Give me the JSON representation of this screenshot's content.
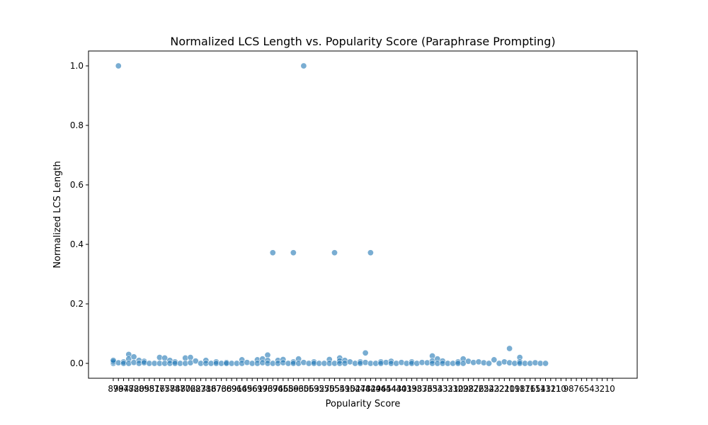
{
  "chart_data": {
    "type": "scatter",
    "title": "Normalized LCS Length vs. Popularity Score (Paraphrase Prompting)",
    "xlabel": "Popularity Score",
    "ylabel": "Normalized LCS Length",
    "ylim": [
      -0.05,
      1.05
    ],
    "grid": false,
    "point_color": "#1f77b4",
    "point_opacity": 0.6,
    "y_ticks": [
      {
        "value": 0.0,
        "label": "0.0"
      },
      {
        "value": 0.2,
        "label": "0.2"
      },
      {
        "value": 0.4,
        "label": "0.4"
      },
      {
        "value": 0.6,
        "label": "0.6"
      },
      {
        "value": 0.8,
        "label": "0.8"
      },
      {
        "value": 1.0,
        "label": "1.0"
      }
    ],
    "categories": [
      "89",
      "79",
      "84",
      "77",
      "82",
      "80",
      "85",
      "95",
      "81",
      "76",
      "75",
      "78",
      "74",
      "88",
      "70",
      "72",
      "62",
      "83",
      "71",
      "86",
      "87",
      "73",
      "68",
      "69",
      "91",
      "64",
      "65",
      "96",
      "61",
      "97",
      "93",
      "67",
      "94",
      "66",
      "58",
      "59",
      "63",
      "60",
      "56",
      "53",
      "92",
      "57",
      "50",
      "55",
      "54",
      "51",
      "90",
      "52",
      "47",
      "48",
      "42",
      "49",
      "46",
      "45",
      "44",
      "43",
      "40",
      "41",
      "39",
      "38",
      "37",
      "36",
      "35",
      "34",
      "33",
      "32",
      "31",
      "30",
      "29",
      "28",
      "27",
      "26",
      "25",
      "24",
      "23",
      "22",
      "21",
      "20",
      "19",
      "18",
      "17",
      "16",
      "15",
      "14",
      "13",
      "12",
      "11",
      "10",
      "9",
      "8",
      "7",
      "6",
      "5",
      "4",
      "3",
      "2",
      "1",
      "0"
    ],
    "tick_labels": [
      "89",
      "79",
      "84",
      "77",
      "82",
      "80",
      "85",
      "95",
      "81",
      "76",
      "75",
      "78",
      "74",
      "88",
      "70",
      "72",
      "62",
      "83",
      "71",
      "86",
      "87",
      "73",
      "68",
      "69",
      "91",
      "64",
      "65",
      "96",
      "61",
      "97",
      "93",
      "67",
      "94",
      "66",
      "58",
      "59",
      "63",
      "60",
      "56",
      "53",
      "92",
      "57",
      "50",
      "55",
      "54",
      "51",
      "90",
      "52",
      "47",
      "48",
      "42",
      "49",
      "46",
      "45",
      "44",
      "43",
      "40",
      "41",
      "39",
      "38",
      "37",
      "36",
      "35",
      "34",
      "33",
      "32",
      "31",
      "30",
      "29",
      "28",
      "27",
      "26",
      "25",
      "24",
      "23",
      "22",
      "21",
      "20",
      "19",
      "18",
      "17",
      "16",
      "15",
      "14",
      "13",
      "12",
      "11",
      "10",
      "9",
      "8",
      "7",
      "6",
      "5",
      "4",
      "3",
      "2",
      "1",
      "0"
    ],
    "points": [
      {
        "x": "89",
        "y": 0.0
      },
      {
        "x": "89",
        "y": 0.005
      },
      {
        "x": "89",
        "y": 0.01
      },
      {
        "x": "79",
        "y": 1.0
      },
      {
        "x": "79",
        "y": 0.002
      },
      {
        "x": "84",
        "y": 0.005
      },
      {
        "x": "84",
        "y": 0.0
      },
      {
        "x": "77",
        "y": 0.03
      },
      {
        "x": "77",
        "y": 0.015
      },
      {
        "x": "77",
        "y": 0.0
      },
      {
        "x": "82",
        "y": 0.022
      },
      {
        "x": "82",
        "y": 0.003
      },
      {
        "x": "80",
        "y": 0.01
      },
      {
        "x": "80",
        "y": 0.0
      },
      {
        "x": "85",
        "y": 0.007
      },
      {
        "x": "85",
        "y": 0.002
      },
      {
        "x": "95",
        "y": 0.0
      },
      {
        "x": "81",
        "y": 0.0
      },
      {
        "x": "76",
        "y": 0.02
      },
      {
        "x": "76",
        "y": 0.0
      },
      {
        "x": "75",
        "y": 0.018
      },
      {
        "x": "75",
        "y": 0.0
      },
      {
        "x": "78",
        "y": 0.01
      },
      {
        "x": "78",
        "y": 0.0
      },
      {
        "x": "74",
        "y": 0.005
      },
      {
        "x": "74",
        "y": 0.0
      },
      {
        "x": "88",
        "y": 0.0
      },
      {
        "x": "70",
        "y": 0.018
      },
      {
        "x": "70",
        "y": 0.0
      },
      {
        "x": "72",
        "y": 0.02
      },
      {
        "x": "72",
        "y": 0.002
      },
      {
        "x": "62",
        "y": 0.008
      },
      {
        "x": "83",
        "y": 0.0
      },
      {
        "x": "71",
        "y": 0.01
      },
      {
        "x": "71",
        "y": 0.0
      },
      {
        "x": "86",
        "y": 0.0
      },
      {
        "x": "87",
        "y": 0.005
      },
      {
        "x": "87",
        "y": 0.0
      },
      {
        "x": "73",
        "y": 0.0
      },
      {
        "x": "68",
        "y": 0.003
      },
      {
        "x": "68",
        "y": 0.0
      },
      {
        "x": "69",
        "y": 0.0
      },
      {
        "x": "91",
        "y": 0.0
      },
      {
        "x": "64",
        "y": 0.012
      },
      {
        "x": "64",
        "y": 0.0
      },
      {
        "x": "65",
        "y": 0.003
      },
      {
        "x": "96",
        "y": 0.0
      },
      {
        "x": "61",
        "y": 0.012
      },
      {
        "x": "61",
        "y": 0.0
      },
      {
        "x": "97",
        "y": 0.015
      },
      {
        "x": "97",
        "y": 0.002
      },
      {
        "x": "93",
        "y": 0.028
      },
      {
        "x": "93",
        "y": 0.01
      },
      {
        "x": "93",
        "y": 0.0
      },
      {
        "x": "67",
        "y": 0.372
      },
      {
        "x": "67",
        "y": 0.0
      },
      {
        "x": "94",
        "y": 0.01
      },
      {
        "x": "94",
        "y": 0.0
      },
      {
        "x": "66",
        "y": 0.013
      },
      {
        "x": "66",
        "y": 0.002
      },
      {
        "x": "58",
        "y": 0.0
      },
      {
        "x": "59",
        "y": 0.372
      },
      {
        "x": "59",
        "y": 0.005
      },
      {
        "x": "59",
        "y": 0.0
      },
      {
        "x": "63",
        "y": 0.015
      },
      {
        "x": "63",
        "y": 0.0
      },
      {
        "x": "60",
        "y": 1.0
      },
      {
        "x": "60",
        "y": 0.003
      },
      {
        "x": "56",
        "y": 0.0
      },
      {
        "x": "53",
        "y": 0.005
      },
      {
        "x": "53",
        "y": 0.0
      },
      {
        "x": "92",
        "y": 0.0
      },
      {
        "x": "57",
        "y": 0.0
      },
      {
        "x": "50",
        "y": 0.013
      },
      {
        "x": "50",
        "y": 0.0
      },
      {
        "x": "55",
        "y": 0.372
      },
      {
        "x": "55",
        "y": 0.0
      },
      {
        "x": "54",
        "y": 0.018
      },
      {
        "x": "54",
        "y": 0.008
      },
      {
        "x": "54",
        "y": 0.0
      },
      {
        "x": "51",
        "y": 0.01
      },
      {
        "x": "51",
        "y": 0.0
      },
      {
        "x": "90",
        "y": 0.005
      },
      {
        "x": "52",
        "y": 0.0
      },
      {
        "x": "47",
        "y": 0.005
      },
      {
        "x": "47",
        "y": 0.0
      },
      {
        "x": "48",
        "y": 0.035
      },
      {
        "x": "48",
        "y": 0.003
      },
      {
        "x": "42",
        "y": 0.372
      },
      {
        "x": "42",
        "y": 0.0
      },
      {
        "x": "49",
        "y": 0.0
      },
      {
        "x": "46",
        "y": 0.005
      },
      {
        "x": "46",
        "y": 0.0
      },
      {
        "x": "45",
        "y": 0.003
      },
      {
        "x": "44",
        "y": 0.007
      },
      {
        "x": "44",
        "y": 0.0
      },
      {
        "x": "43",
        "y": 0.0
      },
      {
        "x": "40",
        "y": 0.003
      },
      {
        "x": "41",
        "y": 0.0
      },
      {
        "x": "39",
        "y": 0.005
      },
      {
        "x": "39",
        "y": 0.0
      },
      {
        "x": "38",
        "y": 0.0
      },
      {
        "x": "37",
        "y": 0.003
      },
      {
        "x": "36",
        "y": 0.002
      },
      {
        "x": "35",
        "y": 0.025
      },
      {
        "x": "35",
        "y": 0.008
      },
      {
        "x": "35",
        "y": 0.0
      },
      {
        "x": "34",
        "y": 0.015
      },
      {
        "x": "34",
        "y": 0.0
      },
      {
        "x": "33",
        "y": 0.008
      },
      {
        "x": "33",
        "y": 0.0
      },
      {
        "x": "32",
        "y": 0.0
      },
      {
        "x": "31",
        "y": 0.0
      },
      {
        "x": "30",
        "y": 0.005
      },
      {
        "x": "30",
        "y": 0.0
      },
      {
        "x": "29",
        "y": 0.015
      },
      {
        "x": "29",
        "y": 0.0
      },
      {
        "x": "28",
        "y": 0.007
      },
      {
        "x": "27",
        "y": 0.003
      },
      {
        "x": "26",
        "y": 0.005
      },
      {
        "x": "25",
        "y": 0.002
      },
      {
        "x": "24",
        "y": 0.0
      },
      {
        "x": "23",
        "y": 0.012
      },
      {
        "x": "22",
        "y": 0.0
      },
      {
        "x": "21",
        "y": 0.005
      },
      {
        "x": "20",
        "y": 0.05
      },
      {
        "x": "20",
        "y": 0.002
      },
      {
        "x": "19",
        "y": 0.0
      },
      {
        "x": "18",
        "y": 0.02
      },
      {
        "x": "18",
        "y": 0.005
      },
      {
        "x": "18",
        "y": 0.0
      },
      {
        "x": "17",
        "y": 0.0
      },
      {
        "x": "16",
        "y": 0.0
      },
      {
        "x": "15",
        "y": 0.002
      },
      {
        "x": "14",
        "y": 0.0
      },
      {
        "x": "13",
        "y": 0.0
      }
    ]
  }
}
